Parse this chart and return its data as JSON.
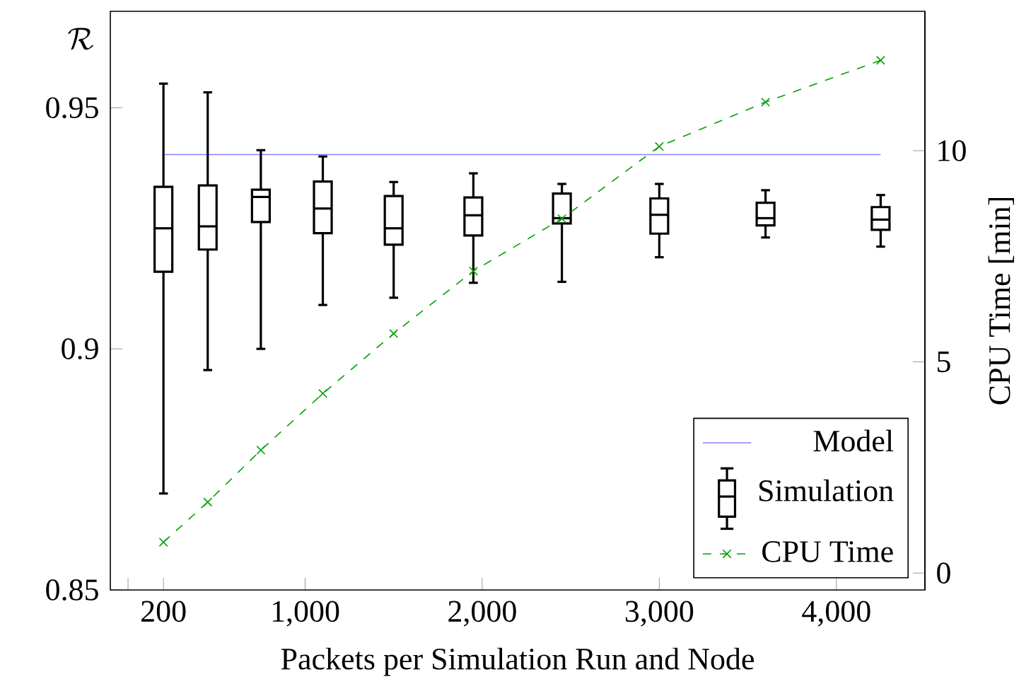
{
  "chart_data": {
    "type": "box",
    "xlabel": "Packets per Simulation Run and Node",
    "ylabel": "\\mathcal{R}",
    "y2label": "CPU Time [min]",
    "x": [
      200,
      450,
      750,
      1100,
      1500,
      1950,
      2450,
      3000,
      3600,
      4250
    ],
    "xlim": [
      -100,
      4500
    ],
    "xticks": [
      {
        "value": 0,
        "label": null
      },
      200,
      {
        "value": 1000,
        "label": "1,000"
      },
      {
        "value": 2000,
        "label": "2,000"
      },
      {
        "value": 3000,
        "label": "3,000"
      },
      {
        "value": 4000,
        "label": "4,000"
      }
    ],
    "ylim": [
      0.85,
      0.97
    ],
    "yticks": [
      0.85,
      0.9,
      0.95
    ],
    "y2lim": [
      -0.4,
      13.3
    ],
    "y2ticks": [
      0,
      5,
      10
    ],
    "legend": "bottom right",
    "series": [
      {
        "name": "Model",
        "type": "line",
        "color": "#8080ff",
        "values": [
          0.9403,
          0.9403,
          0.9403,
          0.9403,
          0.9403,
          0.9403,
          0.9403,
          0.9403,
          0.9403,
          0.9403
        ]
      },
      {
        "name": "Simulation",
        "type": "box",
        "color": "#000000",
        "boxes": [
          {
            "low": 0.87,
            "q1": 0.916,
            "median": 0.925,
            "q3": 0.9336,
            "high": 0.955
          },
          {
            "low": 0.8956,
            "q1": 0.9206,
            "median": 0.9254,
            "q3": 0.9339,
            "high": 0.9532
          },
          {
            "low": 0.9,
            "q1": 0.9263,
            "median": 0.9315,
            "q3": 0.933,
            "high": 0.9412
          },
          {
            "low": 0.9091,
            "q1": 0.924,
            "median": 0.9291,
            "q3": 0.9347,
            "high": 0.9399
          },
          {
            "low": 0.9106,
            "q1": 0.9216,
            "median": 0.925,
            "q3": 0.9317,
            "high": 0.9346
          },
          {
            "low": 0.9137,
            "q1": 0.9235,
            "median": 0.9277,
            "q3": 0.9314,
            "high": 0.9364
          },
          {
            "low": 0.9139,
            "q1": 0.926,
            "median": 0.9271,
            "q3": 0.9322,
            "high": 0.9342
          },
          {
            "low": 0.919,
            "q1": 0.9239,
            "median": 0.9278,
            "q3": 0.9312,
            "high": 0.9342
          },
          {
            "low": 0.9231,
            "q1": 0.9256,
            "median": 0.9271,
            "q3": 0.9303,
            "high": 0.9329
          },
          {
            "low": 0.9212,
            "q1": 0.9247,
            "median": 0.9268,
            "q3": 0.9294,
            "high": 0.9319
          }
        ]
      },
      {
        "name": "CPU Time",
        "type": "line",
        "axis": "y2",
        "color": "#00a000",
        "marker": "cross",
        "line_style": "dashed",
        "values": [
          0.73,
          1.68,
          2.91,
          4.25,
          5.67,
          7.15,
          8.39,
          10.1,
          11.15,
          12.14
        ]
      }
    ]
  }
}
